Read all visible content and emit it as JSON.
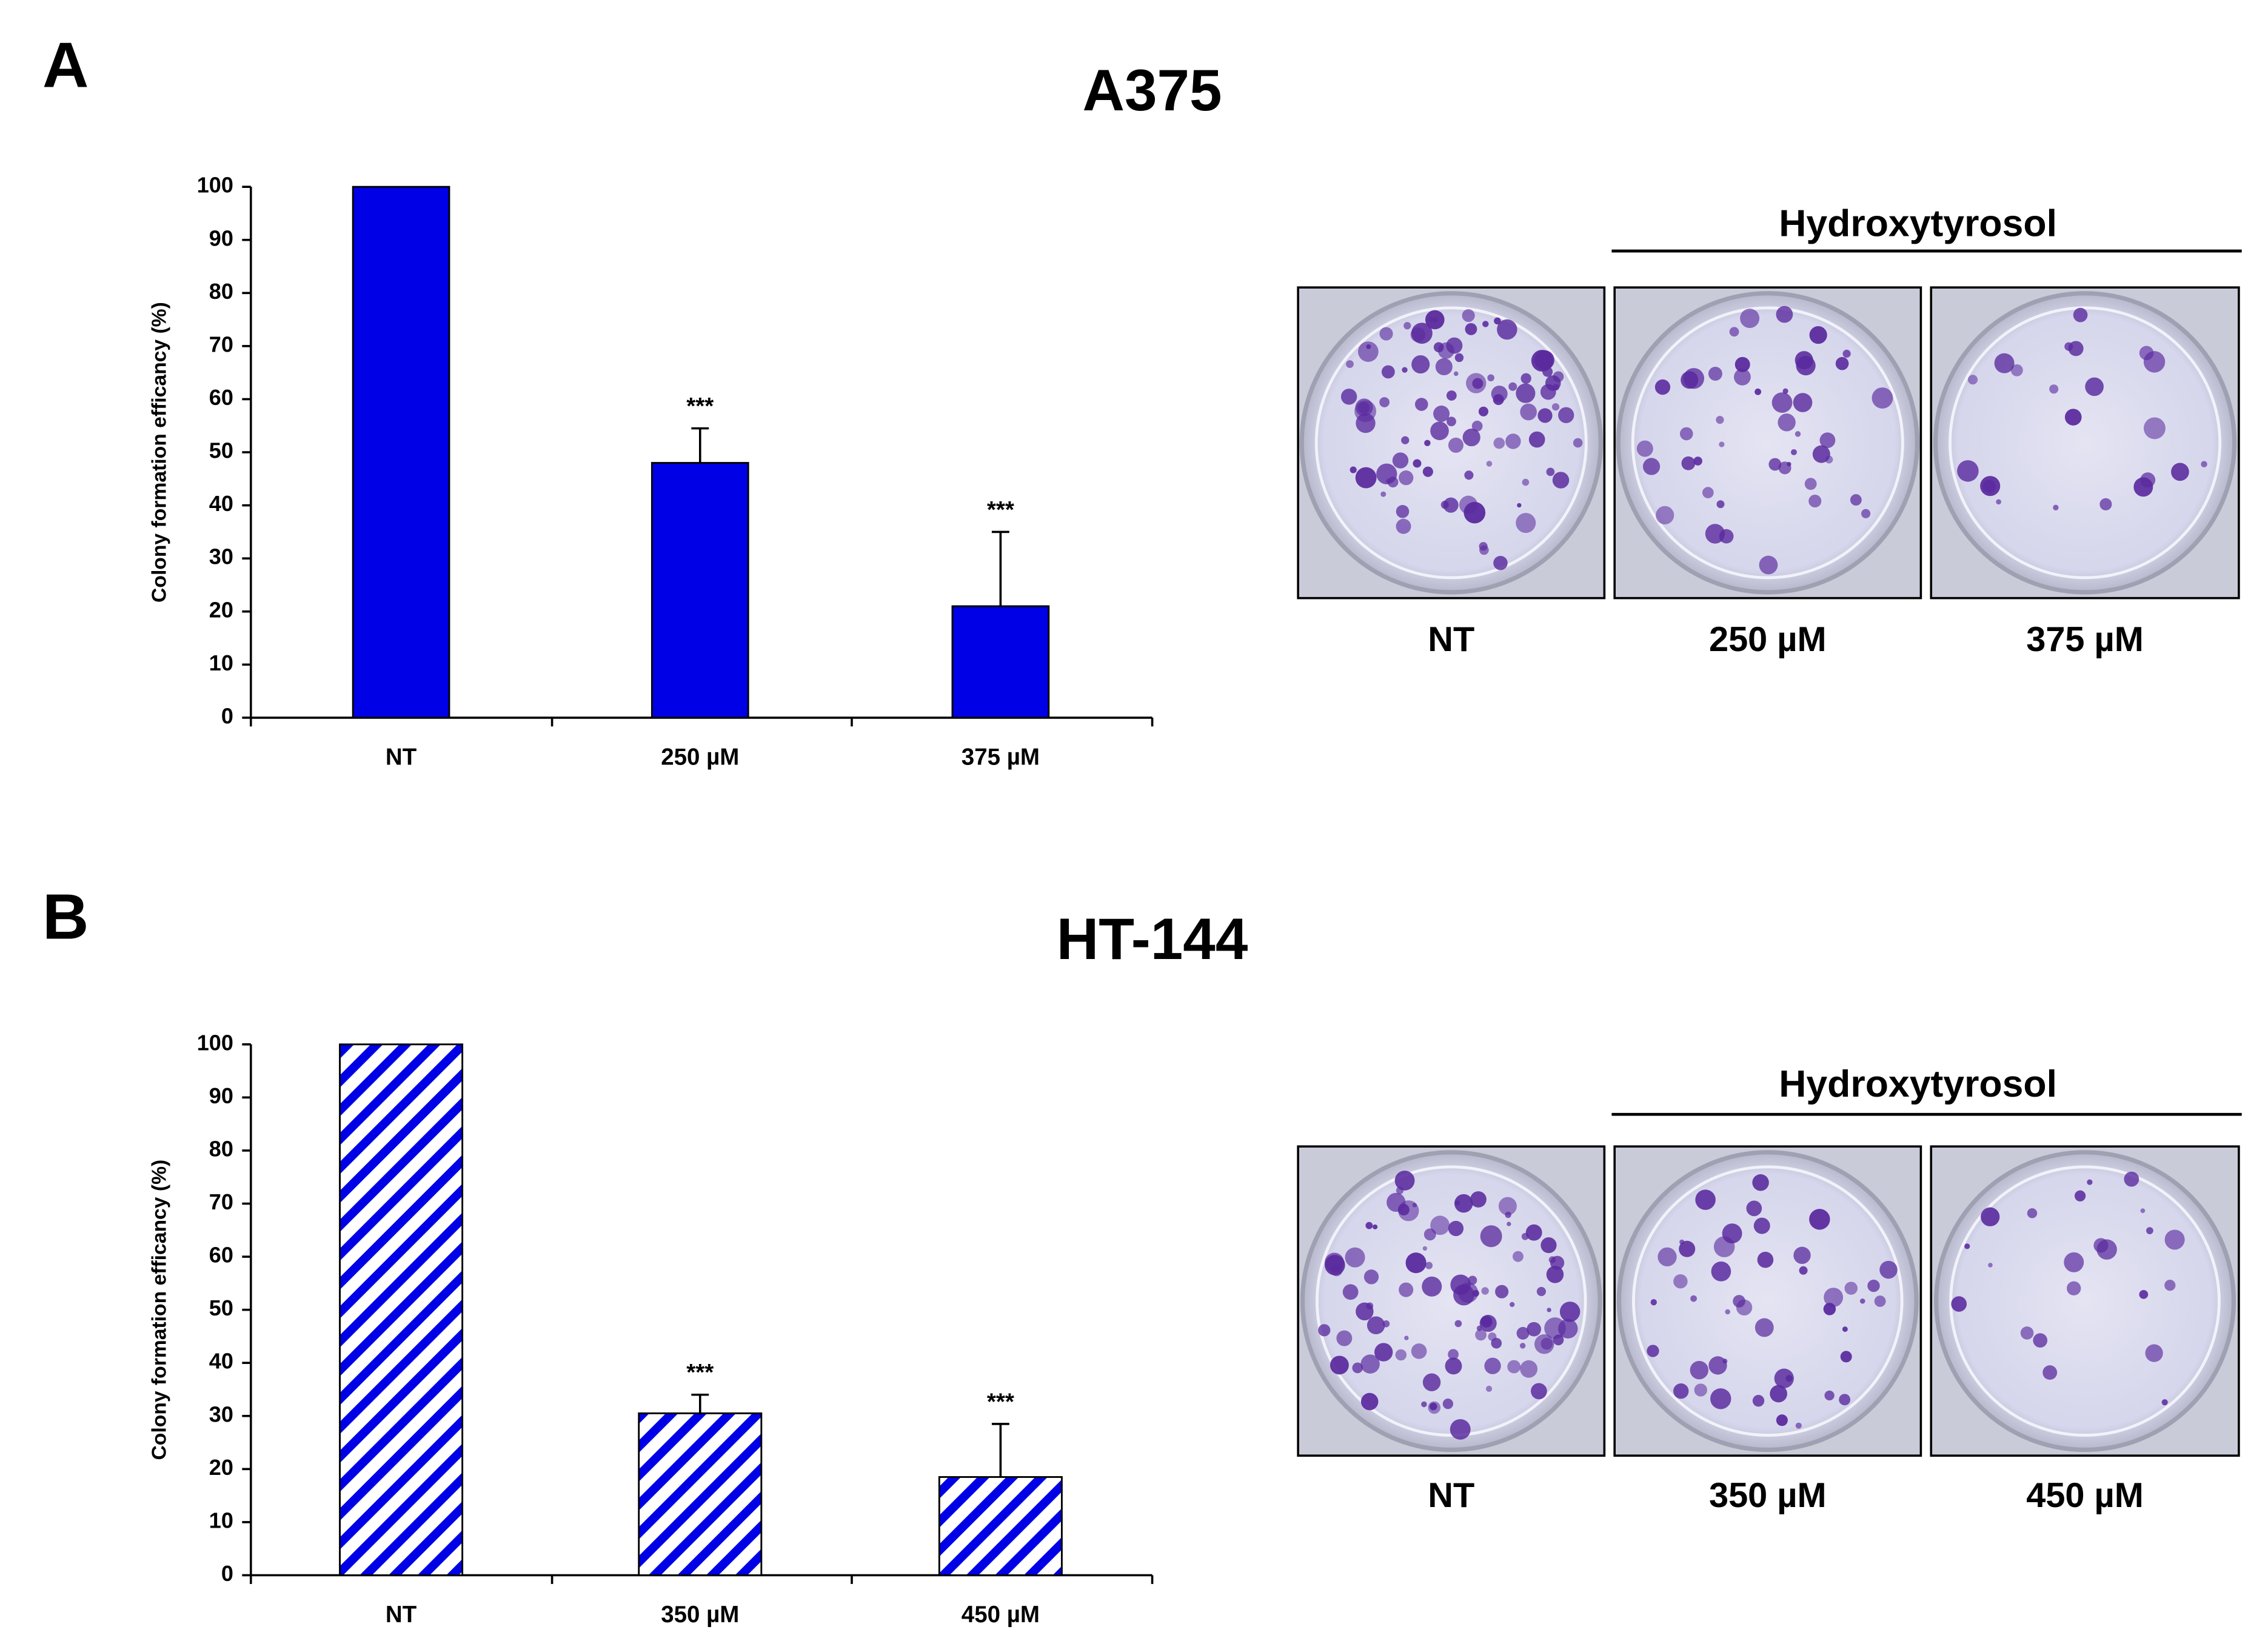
{
  "chart_data": [
    {
      "type": "bar",
      "panel": "A",
      "title": "A375",
      "ylabel": "Colony formation efficancy (%)",
      "categories": [
        "NT",
        "250 µM",
        "375 µM"
      ],
      "values": [
        100,
        48,
        21
      ],
      "errors": [
        0,
        6.5,
        14
      ],
      "annotations": [
        null,
        "***",
        "***"
      ],
      "color": "#0000e6",
      "fill_style": "solid",
      "ylim": [
        0,
        100
      ],
      "yticks": [
        0,
        10,
        20,
        30,
        40,
        50,
        60,
        70,
        80,
        90,
        100
      ],
      "treatment_label": "Hydroxytyrosol",
      "photo_labels": [
        "NT",
        "250 µM",
        "375 µM"
      ]
    },
    {
      "type": "bar",
      "panel": "B",
      "title": "HT-144",
      "ylabel": "Colony formation efficancy (%)",
      "categories": [
        "NT",
        "350 µM",
        "450 µM"
      ],
      "values": [
        100,
        30.5,
        18.5
      ],
      "errors": [
        0,
        3.5,
        10
      ],
      "annotations": [
        null,
        "***",
        "***"
      ],
      "color": "#0000e6",
      "fill_style": "hatch",
      "ylim": [
        0,
        100
      ],
      "yticks": [
        0,
        10,
        20,
        30,
        40,
        50,
        60,
        70,
        80,
        90,
        100
      ],
      "treatment_label": "Hydroxytyrosol",
      "photo_labels": [
        "NT",
        "350 µM",
        "450 µM"
      ]
    }
  ]
}
